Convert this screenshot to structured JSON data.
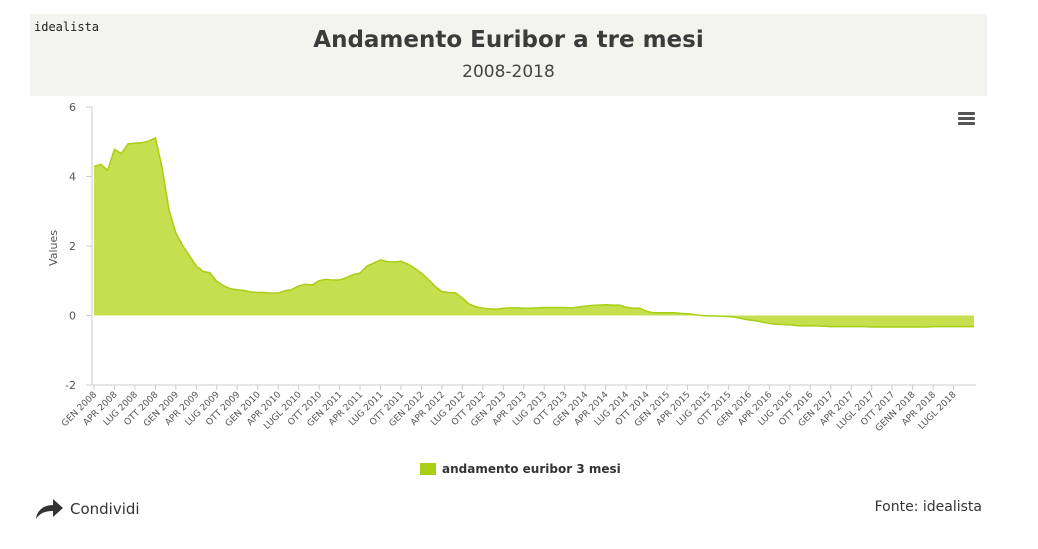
{
  "brand": {
    "logo_text": "idealista"
  },
  "header": {
    "title": "Andamento Euribor a tre mesi",
    "subtitle": "2008-2018"
  },
  "share": {
    "label": "Condividi"
  },
  "source": {
    "label": "Fonte: idealista"
  },
  "menu": {
    "icon": "hamburger-menu-icon"
  },
  "colors": {
    "fill": "#c2dd44",
    "stroke": "#a8cf14",
    "header_bg": "#f4f4ef"
  },
  "chart_data": {
    "type": "area",
    "title": "Andamento Euribor a tre mesi",
    "subtitle": "2008-2018",
    "xlabel": "",
    "ylabel": "Values",
    "ylim": [
      -2,
      6
    ],
    "yticks": [
      -2,
      0,
      2,
      4,
      6
    ],
    "grid": false,
    "legend_position": "bottom-center",
    "x_tick_labels": [
      "GEN 2008",
      "APR 2008",
      "LUG 2008",
      "OTT 2008",
      "GEN 2009",
      "APR 2009",
      "LUG 2009",
      "OTT 2009",
      "GEN 2010",
      "APR 2010",
      "LUGL 2010",
      "OTT 2010",
      "GEN 2011",
      "APR 2011",
      "LUG 2011",
      "OTT 2011",
      "GEN 2012",
      "APR 2012",
      "LUG 2012",
      "OTT 2012",
      "GEN 2013",
      "APR 2013",
      "LUG 2013",
      "OTT 2013",
      "GEN 2014",
      "APR 2014",
      "LUG 2014",
      "OTT 2014",
      "GEN 2015",
      "APR 2015",
      "LUG 2015",
      "OTT 2015",
      "GEN 2016",
      "APR 2016",
      "LUG 2016",
      "OTT 2016",
      "GEN 2017",
      "APR 2017",
      "LUGL 2017",
      "OTT 2017",
      "GENN 2018",
      "APR 2018",
      "LUGL 2018"
    ],
    "series": [
      {
        "name": "andamento euribor 3 mesi",
        "values": [
          4.29,
          4.35,
          4.18,
          4.78,
          4.66,
          4.94,
          4.96,
          4.97,
          5.02,
          5.11,
          4.24,
          3.03,
          2.38,
          2.01,
          1.72,
          1.42,
          1.27,
          1.23,
          0.98,
          0.86,
          0.77,
          0.74,
          0.72,
          0.68,
          0.66,
          0.66,
          0.64,
          0.65,
          0.71,
          0.75,
          0.85,
          0.9,
          0.88,
          1.0,
          1.04,
          1.02,
          1.02,
          1.09,
          1.18,
          1.22,
          1.42,
          1.51,
          1.6,
          1.55,
          1.54,
          1.56,
          1.48,
          1.36,
          1.22,
          1.04,
          0.84,
          0.69,
          0.66,
          0.65,
          0.5,
          0.33,
          0.25,
          0.21,
          0.19,
          0.18,
          0.21,
          0.22,
          0.22,
          0.21,
          0.21,
          0.22,
          0.23,
          0.23,
          0.23,
          0.23,
          0.22,
          0.24,
          0.27,
          0.29,
          0.3,
          0.31,
          0.3,
          0.3,
          0.24,
          0.21,
          0.21,
          0.12,
          0.08,
          0.08,
          0.08,
          0.08,
          0.06,
          0.05,
          0.03,
          0.0,
          -0.01,
          -0.01,
          -0.02,
          -0.03,
          -0.05,
          -0.09,
          -0.13,
          -0.15,
          -0.19,
          -0.23,
          -0.25,
          -0.26,
          -0.27,
          -0.29,
          -0.3,
          -0.3,
          -0.3,
          -0.31,
          -0.32,
          -0.32,
          -0.32,
          -0.32,
          -0.32,
          -0.32,
          -0.33,
          -0.33,
          -0.33,
          -0.33,
          -0.33,
          -0.33,
          -0.33,
          -0.33,
          -0.33,
          -0.32,
          -0.32,
          -0.32,
          -0.32,
          -0.32,
          -0.32,
          -0.32
        ]
      }
    ]
  }
}
